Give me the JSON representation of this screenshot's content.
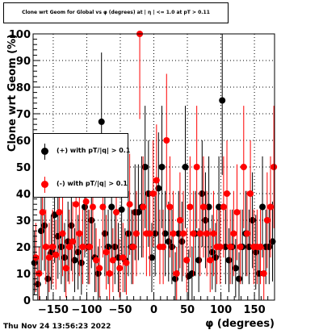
{
  "title": "Clone wrt Geom for Global vs φ (degrees) at | η | <= 1.0 at pT > 0.11",
  "timestamp": "Thu Nov 24 13:56:23 2022",
  "chart_data": {
    "type": "scatter",
    "title": "Clone wrt Geom for Global vs φ (degrees) at | η | <= 1.0 at pT > 0.11",
    "xlabel": "φ (degrees)",
    "ylabel": "Clone wrt Geom (%)",
    "xlim": [
      -180,
      180
    ],
    "ylim": [
      0,
      100
    ],
    "xticks": [
      -150,
      -100,
      -50,
      0,
      50,
      100,
      150
    ],
    "yticks": [
      0,
      10,
      20,
      30,
      40,
      50,
      60,
      70,
      80,
      90,
      100
    ],
    "grid": true,
    "legend_position": "left",
    "series": [
      {
        "name": "(+) with pT/|q| > 0.1",
        "color": "#000000",
        "x": [
          -178,
          -173,
          -168,
          -163,
          -158,
          -153,
          -148,
          -143,
          -138,
          -133,
          -128,
          -123,
          -118,
          -113,
          -108,
          -103,
          -98,
          -93,
          -88,
          -83,
          -78,
          -73,
          -68,
          -63,
          -58,
          -53,
          -48,
          -43,
          -38,
          -33,
          -28,
          -23,
          -18,
          -13,
          -8,
          -3,
          2,
          7,
          12,
          17,
          22,
          27,
          32,
          37,
          42,
          47,
          52,
          57,
          62,
          67,
          72,
          77,
          82,
          87,
          92,
          97,
          102,
          107,
          112,
          117,
          122,
          127,
          132,
          137,
          142,
          147,
          152,
          157,
          162,
          167,
          172,
          177
        ],
        "y": [
          14,
          6,
          26,
          28,
          8,
          18,
          32,
          24,
          20,
          16,
          22,
          28,
          15,
          18,
          14,
          35,
          20,
          30,
          16,
          10,
          67,
          25,
          20,
          35,
          20,
          16,
          34,
          15,
          25,
          20,
          33,
          33,
          35,
          50,
          40,
          16,
          25,
          42,
          50,
          25,
          22,
          20,
          8,
          25,
          22,
          50,
          9,
          10,
          25,
          15,
          40,
          30,
          35,
          18,
          16,
          35,
          75,
          20,
          15,
          20,
          12,
          8,
          20,
          25,
          20,
          30,
          18,
          10,
          35,
          20,
          20,
          22
        ]
      },
      {
        "name": "(-) with pT/|q| > 0.1",
        "color": "#ff0000",
        "x": [
          -176,
          -171,
          -166,
          -161,
          -156,
          -151,
          -146,
          -141,
          -136,
          -131,
          -126,
          -121,
          -116,
          -111,
          -106,
          -101,
          -96,
          -91,
          -86,
          -81,
          -76,
          -71,
          -66,
          -61,
          -56,
          -51,
          -46,
          -41,
          -36,
          -31,
          -26,
          -21,
          -16,
          -11,
          -6,
          -1,
          4,
          9,
          14,
          19,
          24,
          29,
          34,
          39,
          44,
          49,
          54,
          59,
          64,
          69,
          74,
          79,
          84,
          89,
          94,
          99,
          104,
          109,
          114,
          119,
          124,
          129,
          134,
          139,
          144,
          149,
          154,
          159,
          164,
          169,
          174,
          179
        ],
        "y": [
          16,
          10,
          33,
          20,
          16,
          20,
          17,
          33,
          25,
          12,
          20,
          22,
          36,
          25,
          20,
          37,
          20,
          35,
          15,
          12,
          35,
          18,
          10,
          15,
          33,
          12,
          16,
          14,
          36,
          20,
          25,
          100,
          35,
          25,
          25,
          40,
          45,
          20,
          20,
          60,
          35,
          25,
          10,
          30,
          25,
          15,
          35,
          25,
          50,
          25,
          35,
          25,
          15,
          25,
          20,
          20,
          35,
          40,
          20,
          25,
          33,
          20,
          50,
          25,
          40,
          20,
          20,
          20,
          10,
          30,
          35,
          50
        ]
      }
    ]
  }
}
